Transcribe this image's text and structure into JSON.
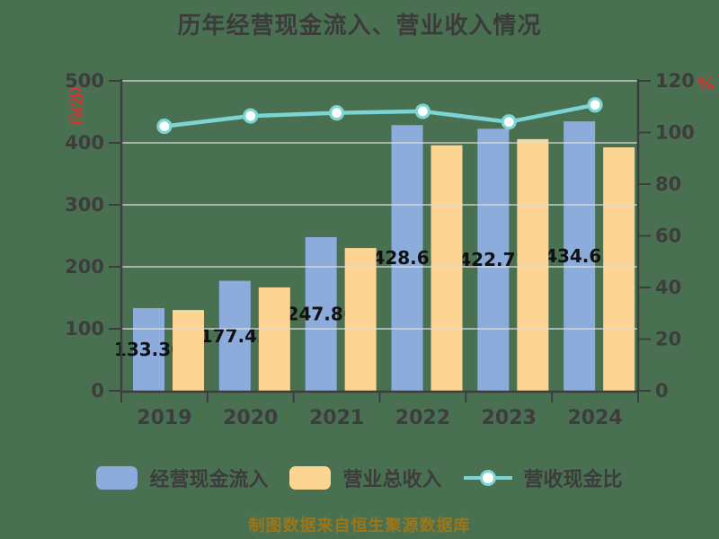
{
  "title": "历年经营现金流入、营业收入情况",
  "footer": "制图数据来自恒生聚源数据库",
  "axes": {
    "left": {
      "unit": "(亿元)",
      "ticks": [
        0,
        100,
        200,
        300,
        400,
        500
      ],
      "max": 500
    },
    "right": {
      "unit": "%",
      "ticks": [
        0,
        20,
        40,
        60,
        80,
        100,
        120
      ],
      "max": 120
    }
  },
  "legend": [
    {
      "label": "经营现金流入",
      "swatch": "bar",
      "color": "#8CACDB"
    },
    {
      "label": "营业总收入",
      "swatch": "bar",
      "color": "#FCD593"
    },
    {
      "label": "营收现金比",
      "swatch": "line-marker",
      "color": "#7CD5D3"
    }
  ],
  "colors": {
    "background": "#4A7052",
    "bar_cash": "#8CACDB",
    "bar_revenue": "#FCD593",
    "ratio_line": "#7CD5D3",
    "marker_fill": "#FFFFFF",
    "axis_text": "#3D3D3D",
    "data_label": "#111111",
    "unit_label": "#E02F2F",
    "footer_text": "#9A771B",
    "gridline": "#DCDCDC"
  },
  "chart_data": {
    "type": "combo-bar-line",
    "title": "历年经营现金流入、营业收入情况",
    "categories": [
      "2019",
      "2020",
      "2021",
      "2022",
      "2023",
      "2024"
    ],
    "series": [
      {
        "name": "经营现金流入",
        "type": "bar",
        "y_axis": "left",
        "values": [
          133.36,
          177.42,
          247.86,
          428.65,
          422.72,
          434.65
        ],
        "data_labels": [
          "133.36",
          "177.42",
          "247.86",
          "428.65",
          "422.72",
          "434.65"
        ]
      },
      {
        "name": "营业总收入",
        "type": "bar",
        "y_axis": "left",
        "values": [
          130.3,
          166.8,
          230.3,
          396.1,
          406.0,
          392.7
        ],
        "note": "not labeled on chart; estimated from bar heights"
      },
      {
        "name": "营收现金比",
        "type": "line",
        "y_axis": "right",
        "values": [
          102.4,
          106.4,
          107.6,
          108.2,
          104.1,
          110.7
        ],
        "note": "not labeled on chart; estimated from line position"
      }
    ],
    "ylabel_left": "(亿元)",
    "ylabel_right": "%",
    "ylim_left": [
      0,
      500
    ],
    "ylim_right": [
      0,
      120
    ],
    "grid": true,
    "legend_position": "bottom"
  }
}
